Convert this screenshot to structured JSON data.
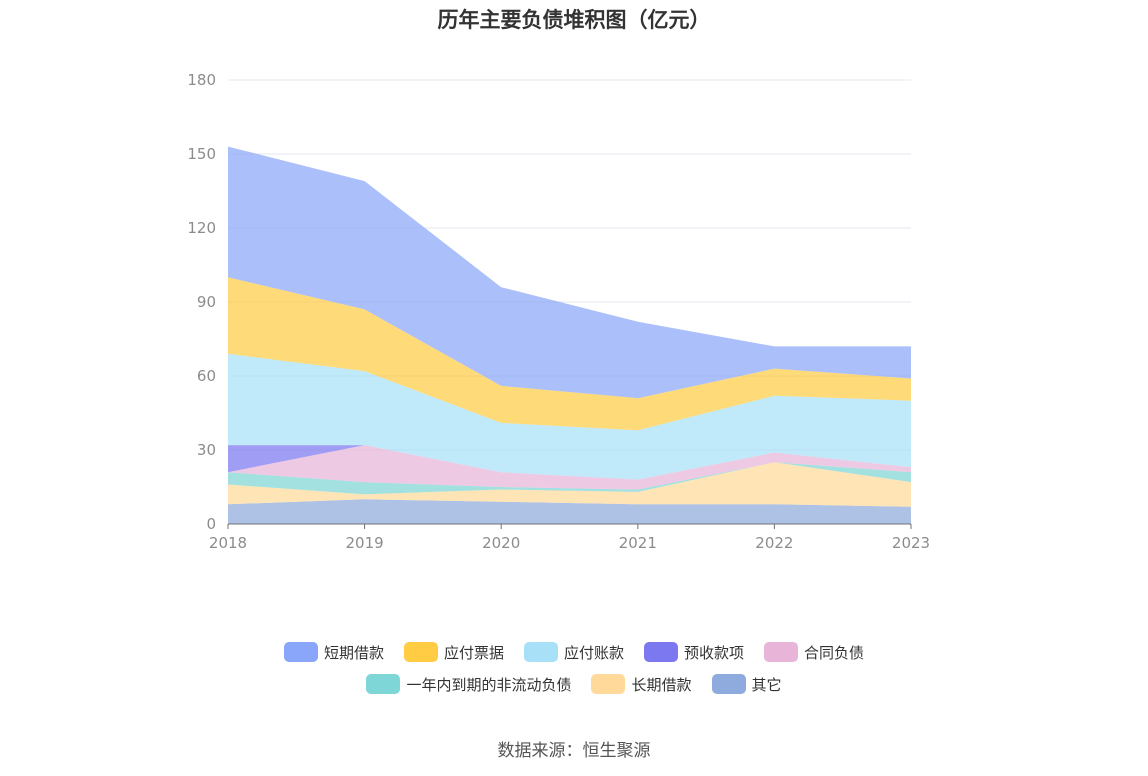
{
  "chart_data": {
    "type": "area",
    "stacked": true,
    "title": "历年主要负债堆积图（亿元）",
    "x": [
      "2018",
      "2019",
      "2020",
      "2021",
      "2022",
      "2023"
    ],
    "ylim": [
      0,
      180
    ],
    "yticks": [
      0,
      30,
      60,
      90,
      120,
      150,
      180
    ],
    "grid": true,
    "legend_position": "bottom",
    "series": [
      {
        "name": "其它",
        "color": "#8faadc",
        "values": [
          8,
          10,
          9,
          8,
          8,
          7
        ]
      },
      {
        "name": "长期借款",
        "color": "#ffd99a",
        "values": [
          8,
          2,
          5,
          5,
          17,
          10
        ]
      },
      {
        "name": "一年内到期的非流动负债",
        "color": "#7fd6d6",
        "values": [
          5,
          5,
          1,
          1,
          0,
          4
        ]
      },
      {
        "name": "合同负债",
        "color": "#e8b4d8",
        "values": [
          0,
          15,
          6,
          4,
          4,
          2
        ]
      },
      {
        "name": "预收款项",
        "color": "#7b78f0",
        "values": [
          11,
          0,
          0,
          0,
          0,
          0
        ]
      },
      {
        "name": "应付账款",
        "color": "#a8e0f8",
        "values": [
          37,
          30,
          20,
          20,
          23,
          27
        ]
      },
      {
        "name": "应付票据",
        "color": "#ffcc44",
        "values": [
          31,
          25,
          15,
          13,
          11,
          9
        ]
      },
      {
        "name": "短期借款",
        "color": "#8aa6fa",
        "values": [
          53,
          52,
          40,
          31,
          9,
          13
        ]
      }
    ]
  },
  "legend_rows": [
    [
      {
        "name": "短期借款",
        "color": "#8aa6fa"
      },
      {
        "name": "应付票据",
        "color": "#ffcc44"
      },
      {
        "name": "应付账款",
        "color": "#a8e0f8"
      },
      {
        "name": "预收款项",
        "color": "#7b78f0"
      },
      {
        "name": "合同负债",
        "color": "#e8b4d8"
      }
    ],
    [
      {
        "name": "一年内到期的非流动负债",
        "color": "#7fd6d6"
      },
      {
        "name": "长期借款",
        "color": "#ffd99a"
      },
      {
        "name": "其它",
        "color": "#8faadc"
      }
    ]
  ],
  "source": "数据来源：恒生聚源"
}
